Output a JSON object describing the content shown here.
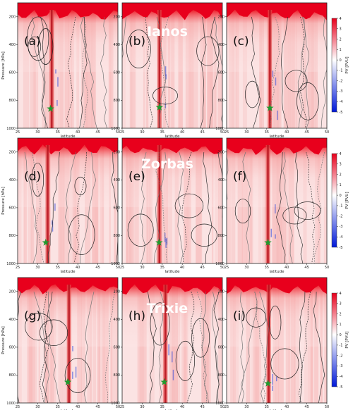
{
  "figure": {
    "storm_titles": [
      "Ianos",
      "Zorbas",
      "Trixie"
    ],
    "panel_labels": [
      "(a)",
      "(b)",
      "(c)",
      "(d)",
      "(e)",
      "(f)",
      "(g)",
      "(h)",
      "(i)"
    ]
  },
  "chart_data": {
    "type": "heatmap",
    "xlabel": "latitude",
    "ylabel": "Pressure [hPa]",
    "xlim": [
      25,
      50
    ],
    "ylim": [
      1000,
      100
    ],
    "x_ticks": [
      25,
      30,
      35,
      40,
      45,
      50
    ],
    "y_ticks": [
      200,
      400,
      600,
      800,
      1000
    ],
    "colorbar": {
      "label": "PV [PVU]",
      "ticks": [
        4,
        3,
        2,
        1,
        0,
        -1,
        -2,
        -3,
        -4,
        -5
      ],
      "range": [
        -5,
        4
      ],
      "colors": [
        "#0018d8",
        "#ffffff",
        "#e8001c"
      ]
    },
    "marker_color": "#1f9a2e",
    "panels": [
      {
        "label": "(a)",
        "storm": "Ianos",
        "marker": {
          "lat": 33.2,
          "p": 860
        },
        "core_lat": 33.5
      },
      {
        "label": "(b)",
        "storm": "Ianos",
        "marker": {
          "lat": 34.3,
          "p": 850
        },
        "core_lat": 34.3
      },
      {
        "label": "(c)",
        "storm": "Ianos",
        "marker": {
          "lat": 35.8,
          "p": 855
        },
        "core_lat": 35.8
      },
      {
        "label": "(d)",
        "storm": "Zorbas",
        "marker": {
          "lat": 32.0,
          "p": 850
        },
        "core_lat": 32.5
      },
      {
        "label": "(e)",
        "storm": "Zorbas",
        "marker": {
          "lat": 34.2,
          "p": 850
        },
        "core_lat": 34.3
      },
      {
        "label": "(f)",
        "storm": "Zorbas",
        "marker": {
          "lat": 35.3,
          "p": 850
        },
        "core_lat": 35.3
      },
      {
        "label": "(g)",
        "storm": "Trixie",
        "marker": {
          "lat": 37.5,
          "p": 850
        },
        "core_lat": 37.8
      },
      {
        "label": "(h)",
        "storm": "Trixie",
        "marker": {
          "lat": 35.5,
          "p": 850
        },
        "core_lat": 35.8
      },
      {
        "label": "(i)",
        "storm": "Trixie",
        "marker": {
          "lat": 35.3,
          "p": 860
        },
        "core_lat": 35.5
      }
    ]
  }
}
